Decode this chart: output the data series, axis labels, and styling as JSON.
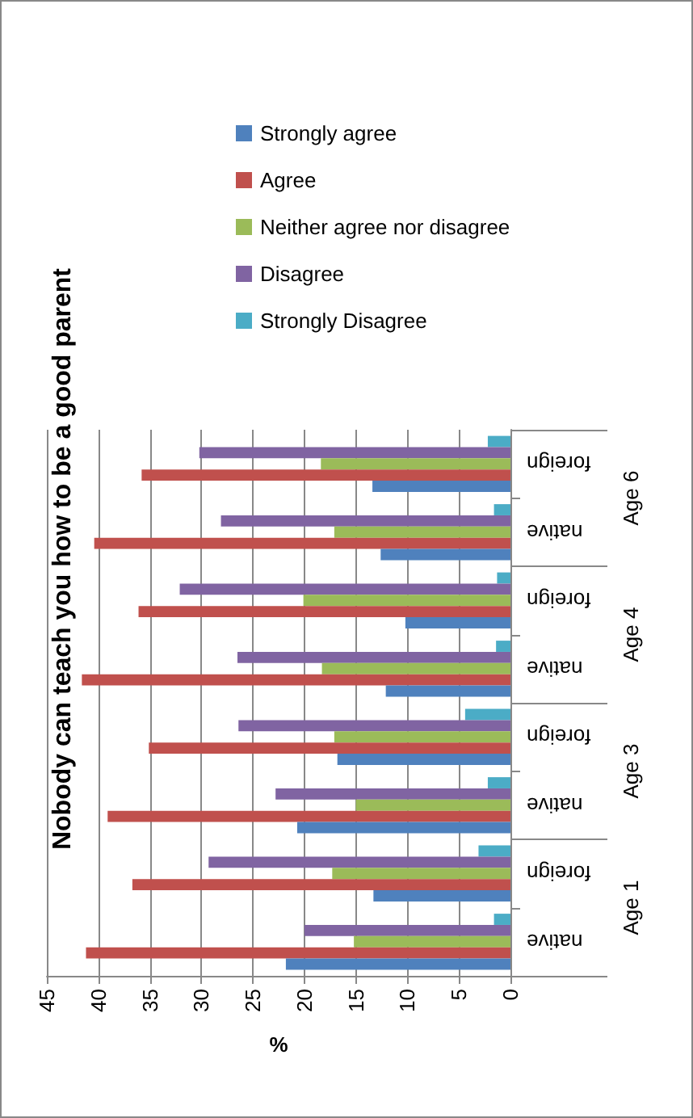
{
  "chart_data": {
    "type": "bar",
    "orientation": "horizontal",
    "title": "Nobody can teach you how to be a good parent",
    "xlabel": "%",
    "categories": [
      "foreign",
      "native",
      "foreign",
      "native",
      "foreign",
      "native",
      "foreign",
      "native"
    ],
    "annotations": [
      "Age 6",
      "Age 4",
      "Age 3",
      "Age 1"
    ],
    "series": [
      {
        "name": "Strongly agree",
        "color": "#4f81bd",
        "values": [
          13.4,
          12.6,
          10.2,
          12.1,
          16.8,
          20.7,
          13.3,
          21.8
        ]
      },
      {
        "name": "Agree",
        "color": "#c0504d",
        "values": [
          35.8,
          40.4,
          36.1,
          41.6,
          35.1,
          39.1,
          36.7,
          41.2
        ]
      },
      {
        "name": "Neither agree nor disagree",
        "color": "#9bbb59",
        "values": [
          18.4,
          17.1,
          20.1,
          18.3,
          17.1,
          15.0,
          17.3,
          15.2
        ]
      },
      {
        "name": "Disagree",
        "color": "#8064a2",
        "values": [
          30.2,
          28.1,
          32.1,
          26.5,
          26.4,
          22.8,
          29.3,
          20.0
        ]
      },
      {
        "name": "Strongly Disagree",
        "color": "#4bacc6",
        "values": [
          2.2,
          1.6,
          1.3,
          1.4,
          4.4,
          2.2,
          3.1,
          1.6
        ]
      }
    ],
    "xlim": [
      45,
      0
    ],
    "xticks": [
      45,
      40,
      35,
      30,
      25,
      20,
      15,
      10,
      5,
      0
    ],
    "grid": "x",
    "legend": "top"
  }
}
